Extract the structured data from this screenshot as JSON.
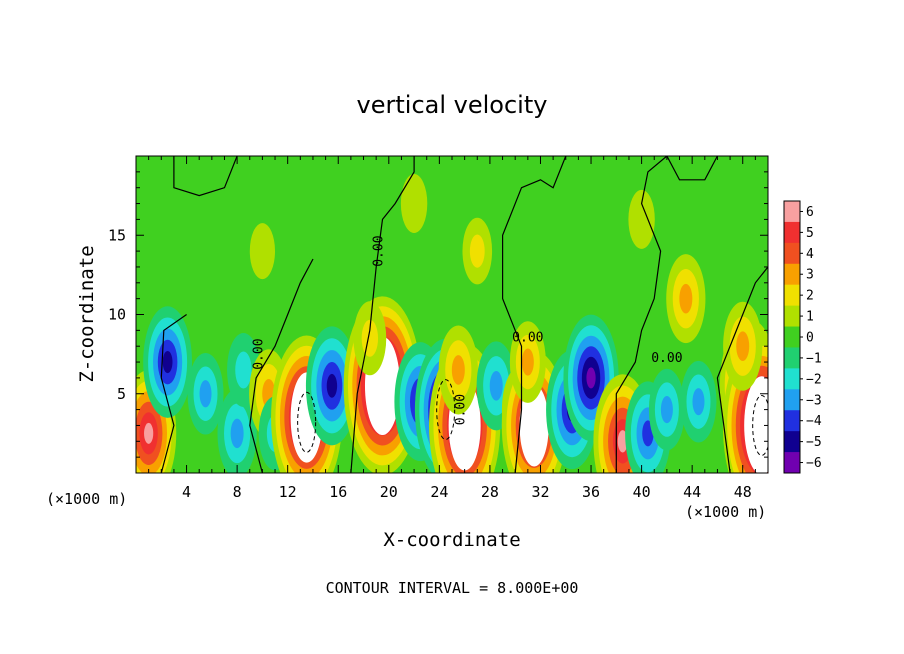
{
  "chart_data": {
    "type": "heatmap",
    "title": "vertical velocity",
    "xlabel": "X-coordinate",
    "ylabel": "Z-coordinate",
    "x_unit_left": "(×1000 m)",
    "x_unit_right": "(×1000 m)",
    "xlim": [
      0,
      50
    ],
    "ylim": [
      0,
      20
    ],
    "x_ticks": [
      "4",
      "8",
      "12",
      "16",
      "20",
      "24",
      "28",
      "32",
      "36",
      "40",
      "44",
      "48"
    ],
    "y_ticks": [
      "5",
      "10",
      "15"
    ],
    "contour_label": "0.00",
    "footer": "CONTOUR INTERVAL = 8.000E+00",
    "colorbar": {
      "labels": [
        "6",
        "5",
        "4",
        "3",
        "2",
        "1",
        "0",
        "−1",
        "−2",
        "−3",
        "−4",
        "−5",
        "−6"
      ],
      "colors": [
        "#f8a0a0",
        "#f03030",
        "#f05020",
        "#f8a000",
        "#f0e000",
        "#b0e000",
        "#40d020",
        "#20d070",
        "#20e0d0",
        "#20a0f0",
        "#2030e0",
        "#100090",
        "#7000b0"
      ]
    },
    "features": [
      {
        "x": 1.0,
        "z": 2.5,
        "w": 5.5
      },
      {
        "x": 2.5,
        "z": 7.0,
        "w": -4.5
      },
      {
        "x": 5.5,
        "z": 5.0,
        "w": -2.5
      },
      {
        "x": 8.0,
        "z": 2.5,
        "w": -3.0
      },
      {
        "x": 8.5,
        "z": 6.5,
        "w": -2.0
      },
      {
        "x": 10.5,
        "z": 5.0,
        "w": 3.0
      },
      {
        "x": 11.0,
        "z": 2.5,
        "w": -2.0
      },
      {
        "x": 13.5,
        "z": 3.5,
        "w": 8.0
      },
      {
        "x": 15.5,
        "z": 5.5,
        "w": -5.0
      },
      {
        "x": 19.5,
        "z": 5.5,
        "w": 9.0
      },
      {
        "x": 18.5,
        "z": 8.5,
        "w": 2.0
      },
      {
        "x": 22.5,
        "z": 4.5,
        "w": -5.0
      },
      {
        "x": 24.5,
        "z": 4.0,
        "w": -6.5
      },
      {
        "x": 26.0,
        "z": 3.0,
        "w": 8.0
      },
      {
        "x": 25.5,
        "z": 6.5,
        "w": 3.0
      },
      {
        "x": 28.5,
        "z": 5.5,
        "w": -3.0
      },
      {
        "x": 30.5,
        "z": 4.0,
        "w": 3.0
      },
      {
        "x": 31.5,
        "z": 3.0,
        "w": 7.0
      },
      {
        "x": 31.0,
        "z": 7.0,
        "w": 2.5
      },
      {
        "x": 34.5,
        "z": 4.0,
        "w": -5.0
      },
      {
        "x": 36.0,
        "z": 6.0,
        "w": -5.5
      },
      {
        "x": 38.5,
        "z": 2.0,
        "w": 6.0
      },
      {
        "x": 40.5,
        "z": 2.5,
        "w": -4.0
      },
      {
        "x": 42.0,
        "z": 4.0,
        "w": -2.5
      },
      {
        "x": 43.5,
        "z": 11.0,
        "w": 3.0
      },
      {
        "x": 44.5,
        "z": 4.5,
        "w": -2.5
      },
      {
        "x": 48.5,
        "z": 5.5,
        "w": 6.0
      },
      {
        "x": 49.5,
        "z": 3.0,
        "w": 9.0
      },
      {
        "x": 48.0,
        "z": 8.0,
        "w": 3.0
      },
      {
        "x": 27.0,
        "z": 14.0,
        "w": 1.5
      },
      {
        "x": 22.0,
        "z": 17.0,
        "w": 1.0
      },
      {
        "x": 10.0,
        "z": 14.0,
        "w": 0.8
      },
      {
        "x": 40.0,
        "z": 16.0,
        "w": 1.0
      }
    ]
  }
}
